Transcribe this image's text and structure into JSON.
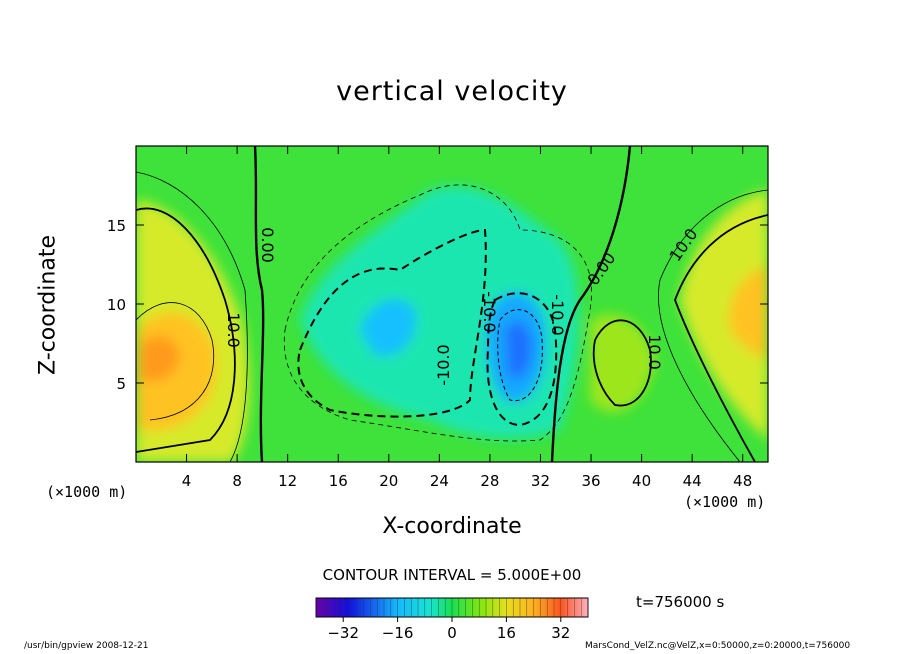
{
  "chart_data": {
    "type": "contour",
    "title": "vertical velocity",
    "xlabel": "X-coordinate",
    "ylabel": "Z-coordinate",
    "x_unit": "(×1000 m)",
    "z_unit": "(×1000 m)",
    "xlim": [
      0,
      50
    ],
    "ylim": [
      0,
      20
    ],
    "x_ticks": [
      4,
      8,
      12,
      16,
      20,
      24,
      28,
      32,
      36,
      40,
      44,
      48
    ],
    "y_ticks": [
      5,
      10,
      15
    ],
    "contour_labels": [
      "0.00",
      "10.0",
      "-10.0",
      "10.0",
      "0.00",
      "-10.0",
      "-10.0",
      "0.00",
      "10.0",
      "10.0"
    ],
    "contour_interval_text": "CONTOUR INTERVAL = 5.000E+00",
    "colorbar_ticks": [
      -32,
      -16,
      0,
      16,
      32
    ],
    "colorbar_range": [
      -40,
      40
    ],
    "time_text": "t=756000 s",
    "footer_left": "/usr/bin/gpview   2008-12-21",
    "footer_right": "MarsCond_VelZ.nc@VelZ,x=0:50000,z=0:20000,t=756000"
  }
}
